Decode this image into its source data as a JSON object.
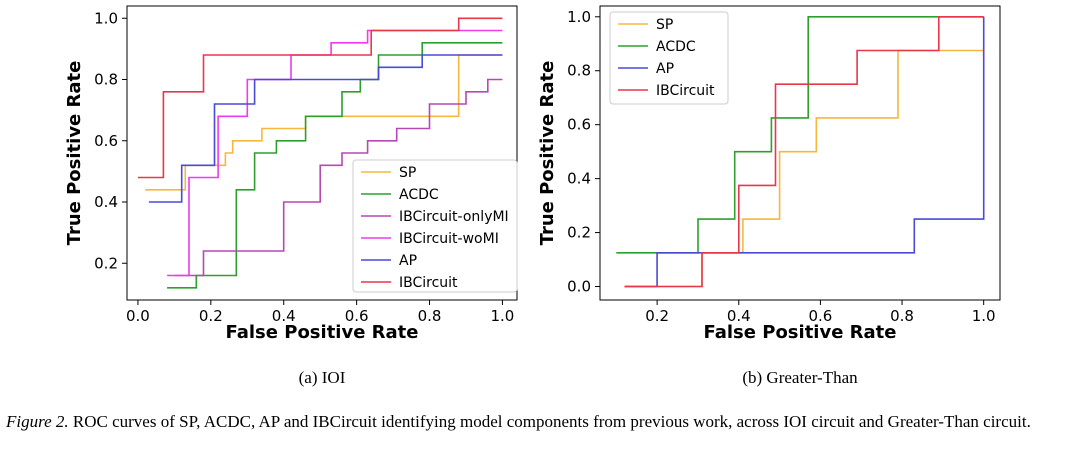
{
  "figure": {
    "caption_label": "Figure 2.",
    "caption_text": "ROC curves of SP, ACDC, AP and IBCircuit identifying model components from previous work, across IOI circuit and Greater-Than circuit."
  },
  "chart_data": [
    {
      "type": "line",
      "subcaption": "(a) IOI",
      "xlabel": "False Positive Rate",
      "ylabel": "True Positive Rate",
      "xlim": [
        -0.03,
        1.04
      ],
      "ylim": [
        0.08,
        1.04
      ],
      "xticks": [
        0.0,
        0.2,
        0.4,
        0.6,
        0.8,
        1.0
      ],
      "xtick_labels": [
        "0.0",
        "0.2",
        "0.4",
        "0.6",
        "0.8",
        "1.0"
      ],
      "yticks": [
        0.2,
        0.4,
        0.6,
        0.8,
        1.0
      ],
      "ytick_labels": [
        "0.2",
        "0.4",
        "0.6",
        "0.8",
        "1.0"
      ],
      "grid": false,
      "legend_position": "lower-right",
      "series": [
        {
          "name": "SP",
          "color": "#f5b83d",
          "x": [
            0.02,
            0.13,
            0.13,
            0.24,
            0.24,
            0.26,
            0.26,
            0.34,
            0.34,
            0.46,
            0.46,
            0.88,
            0.88,
            1.0
          ],
          "y": [
            0.44,
            0.44,
            0.52,
            0.52,
            0.56,
            0.56,
            0.6,
            0.6,
            0.64,
            0.64,
            0.68,
            0.68,
            0.88,
            0.88
          ]
        },
        {
          "name": "ACDC",
          "color": "#2ca02c",
          "x": [
            0.08,
            0.16,
            0.16,
            0.27,
            0.27,
            0.32,
            0.32,
            0.38,
            0.38,
            0.46,
            0.46,
            0.56,
            0.56,
            0.61,
            0.61,
            0.66,
            0.66,
            0.78,
            0.78,
            1.0
          ],
          "y": [
            0.12,
            0.12,
            0.16,
            0.16,
            0.44,
            0.44,
            0.56,
            0.56,
            0.6,
            0.6,
            0.68,
            0.68,
            0.76,
            0.76,
            0.8,
            0.8,
            0.88,
            0.88,
            0.92,
            0.92
          ]
        },
        {
          "name": "IBCircuit-onlyMI",
          "color": "#b548b5",
          "x": [
            0.1,
            0.18,
            0.18,
            0.4,
            0.4,
            0.5,
            0.5,
            0.56,
            0.56,
            0.63,
            0.63,
            0.71,
            0.71,
            0.8,
            0.8,
            0.9,
            0.9,
            0.96,
            0.96,
            1.0
          ],
          "y": [
            0.16,
            0.16,
            0.24,
            0.24,
            0.4,
            0.4,
            0.52,
            0.52,
            0.56,
            0.56,
            0.6,
            0.6,
            0.64,
            0.64,
            0.72,
            0.72,
            0.76,
            0.76,
            0.8,
            0.8
          ]
        },
        {
          "name": "IBCircuit-woMI",
          "color": "#ee3bee",
          "x": [
            0.08,
            0.14,
            0.14,
            0.22,
            0.22,
            0.3,
            0.3,
            0.42,
            0.42,
            0.53,
            0.53,
            0.63,
            0.63,
            1.0
          ],
          "y": [
            0.16,
            0.16,
            0.48,
            0.48,
            0.68,
            0.68,
            0.8,
            0.8,
            0.88,
            0.88,
            0.92,
            0.92,
            0.96,
            0.96
          ]
        },
        {
          "name": "AP",
          "color": "#4a4ad9",
          "x": [
            0.03,
            0.12,
            0.12,
            0.21,
            0.21,
            0.32,
            0.32,
            0.66,
            0.66,
            0.78,
            0.78,
            1.0
          ],
          "y": [
            0.4,
            0.4,
            0.52,
            0.52,
            0.72,
            0.72,
            0.8,
            0.8,
            0.84,
            0.84,
            0.88,
            0.88
          ]
        },
        {
          "name": "IBCircuit",
          "color": "#e8364a",
          "x": [
            0.0,
            0.07,
            0.07,
            0.18,
            0.18,
            0.38,
            0.38,
            0.64,
            0.64,
            0.88,
            0.88,
            1.0
          ],
          "y": [
            0.48,
            0.48,
            0.76,
            0.76,
            0.88,
            0.88,
            0.88,
            0.88,
            0.96,
            0.96,
            1.0,
            1.0
          ]
        }
      ]
    },
    {
      "type": "line",
      "subcaption": "(b) Greater-Than",
      "xlabel": "False Positive Rate",
      "ylabel": "True Positive Rate",
      "xlim": [
        0.06,
        1.04
      ],
      "ylim": [
        -0.05,
        1.04
      ],
      "xticks": [
        0.2,
        0.4,
        0.6,
        0.8,
        1.0
      ],
      "xtick_labels": [
        "0.2",
        "0.4",
        "0.6",
        "0.8",
        "1.0"
      ],
      "yticks": [
        0.0,
        0.2,
        0.4,
        0.6,
        0.8,
        1.0
      ],
      "ytick_labels": [
        "0.0",
        "0.2",
        "0.4",
        "0.6",
        "0.8",
        "1.0"
      ],
      "grid": false,
      "legend_position": "upper-left",
      "series": [
        {
          "name": "SP",
          "color": "#f5b83d",
          "x": [
            0.12,
            0.31,
            0.31,
            0.41,
            0.41,
            0.5,
            0.5,
            0.59,
            0.59,
            0.79,
            0.79,
            1.0
          ],
          "y": [
            0.0,
            0.0,
            0.125,
            0.125,
            0.25,
            0.25,
            0.5,
            0.5,
            0.625,
            0.625,
            0.875,
            0.875
          ]
        },
        {
          "name": "ACDC",
          "color": "#2ca02c",
          "x": [
            0.1,
            0.3,
            0.3,
            0.39,
            0.39,
            0.48,
            0.48,
            0.57,
            0.57,
            1.0
          ],
          "y": [
            0.125,
            0.125,
            0.25,
            0.25,
            0.5,
            0.5,
            0.625,
            0.625,
            1.0,
            1.0
          ]
        },
        {
          "name": "AP",
          "color": "#4a4ad9",
          "x": [
            0.12,
            0.2,
            0.2,
            0.83,
            0.83,
            1.0,
            1.0
          ],
          "y": [
            0.0,
            0.0,
            0.125,
            0.125,
            0.25,
            0.25,
            1.0
          ]
        },
        {
          "name": "IBCircuit",
          "color": "#e8364a",
          "x": [
            0.12,
            0.31,
            0.31,
            0.4,
            0.4,
            0.49,
            0.49,
            0.59,
            0.59,
            0.69,
            0.69,
            0.89,
            0.89,
            1.0
          ],
          "y": [
            0.0,
            0.0,
            0.125,
            0.125,
            0.375,
            0.375,
            0.75,
            0.75,
            0.75,
            0.75,
            0.875,
            0.875,
            1.0,
            1.0
          ]
        }
      ]
    }
  ]
}
